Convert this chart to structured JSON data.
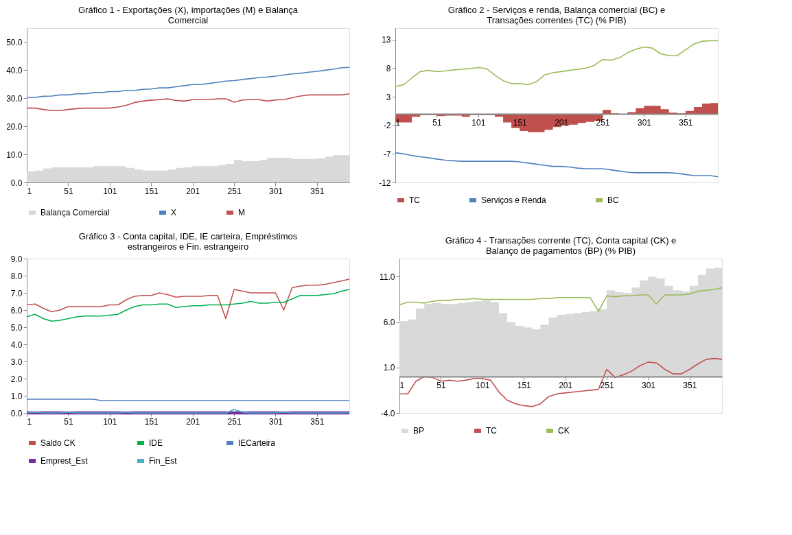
{
  "chart_data": [
    {
      "type": "line",
      "title": "Gráfico 1 - Exportações (X), importações (M) e Balança Comercial",
      "legend": "bottom",
      "grid": false,
      "x": [
        1,
        11,
        21,
        31,
        41,
        51,
        61,
        71,
        81,
        91,
        101,
        111,
        121,
        131,
        141,
        151,
        161,
        171,
        181,
        191,
        201,
        211,
        221,
        231,
        241,
        251,
        261,
        271,
        281,
        291,
        301,
        311,
        321,
        331,
        341,
        351,
        361,
        371,
        381,
        390
      ],
      "xlim": [
        1,
        390
      ],
      "xticks": [
        1,
        51,
        101,
        151,
        201,
        251,
        301,
        351
      ],
      "ylim": [
        0,
        55
      ],
      "yticks": [
        {
          "value": 0,
          "label": "0.0"
        },
        {
          "value": 10,
          "label": "10.0"
        },
        {
          "value": 20,
          "label": "20.0"
        },
        {
          "value": 30,
          "label": "30.0"
        },
        {
          "value": 40,
          "label": "40.0"
        },
        {
          "value": 50,
          "label": "50.0"
        }
      ],
      "series": [
        {
          "name": "Balança Comercial",
          "type": "area",
          "color": "#d9d9d9",
          "values": [
            4.0,
            4.2,
            5.0,
            5.4,
            5.4,
            5.4,
            5.4,
            5.4,
            5.8,
            5.8,
            5.8,
            5.8,
            5.2,
            4.6,
            4.2,
            4.2,
            4.2,
            4.6,
            5.2,
            5.4,
            5.8,
            5.8,
            5.8,
            6.2,
            6.6,
            8.0,
            7.6,
            7.6,
            8.0,
            8.8,
            8.8,
            8.8,
            8.4,
            8.4,
            8.4,
            8.6,
            9.2,
            9.7,
            9.7,
            9.7
          ]
        },
        {
          "name": "X",
          "color": "#4f81bd",
          "values": [
            30.3,
            30.3,
            30.7,
            30.8,
            31.2,
            31.2,
            31.6,
            31.6,
            32.0,
            32.0,
            32.4,
            32.4,
            32.8,
            32.8,
            33.2,
            33.3,
            33.7,
            33.7,
            34.1,
            34.5,
            34.9,
            34.9,
            35.3,
            35.7,
            36.1,
            36.3,
            36.7,
            37.0,
            37.4,
            37.6,
            37.9,
            38.3,
            38.7,
            38.9,
            39.3,
            39.6,
            40.0,
            40.4,
            40.9,
            41.0
          ]
        },
        {
          "name": "M",
          "color": "#c0504d",
          "values": [
            26.5,
            26.5,
            26.0,
            25.6,
            25.6,
            26.0,
            26.3,
            26.5,
            26.5,
            26.5,
            26.5,
            26.9,
            27.5,
            28.5,
            29.0,
            29.3,
            29.5,
            29.8,
            29.2,
            29.0,
            29.5,
            29.5,
            29.5,
            29.8,
            29.8,
            28.6,
            29.4,
            29.5,
            29.5,
            29.0,
            29.4,
            29.5,
            30.2,
            30.8,
            31.2,
            31.2,
            31.2,
            31.2,
            31.2,
            31.6
          ]
        }
      ]
    },
    {
      "type": "line",
      "title": "Gráfico 2 - Serviços e renda, Balança comercial (BC) e Transações correntes (TC) (% PIB)",
      "legend": "bottom",
      "grid": false,
      "x": [
        1,
        11,
        21,
        31,
        41,
        51,
        61,
        71,
        81,
        91,
        101,
        111,
        121,
        131,
        141,
        151,
        161,
        171,
        181,
        191,
        201,
        211,
        221,
        231,
        241,
        251,
        261,
        271,
        281,
        291,
        301,
        311,
        321,
        331,
        341,
        351,
        361,
        371,
        381,
        390
      ],
      "xlim": [
        1,
        390
      ],
      "xticks": [
        1,
        51,
        101,
        151,
        201,
        251,
        301,
        351
      ],
      "ylim": [
        -12,
        15
      ],
      "yticks": [
        -12,
        -7,
        -2,
        3,
        8,
        13
      ],
      "series": [
        {
          "name": "TC",
          "type": "area",
          "color": "#c0504d",
          "values": [
            -1.5,
            -1.5,
            -0.5,
            -0.2,
            -0.2,
            -0.4,
            -0.3,
            -0.3,
            -0.5,
            -0.2,
            -0.2,
            -0.2,
            -0.5,
            -1.5,
            -2.5,
            -3.0,
            -3.2,
            -3.2,
            -2.8,
            -2.3,
            -2.0,
            -1.9,
            -1.6,
            -1.4,
            -1.2,
            0.7,
            0.1,
            -0.1,
            0.3,
            1.0,
            1.4,
            1.4,
            0.8,
            0.2,
            0.1,
            0.5,
            1.2,
            1.8,
            1.9,
            1.9
          ]
        },
        {
          "name": "Serviços e Renda",
          "color": "#4f81bd",
          "values": [
            -6.8,
            -7.0,
            -7.3,
            -7.5,
            -7.7,
            -7.9,
            -8.1,
            -8.2,
            -8.3,
            -8.3,
            -8.3,
            -8.3,
            -8.3,
            -8.3,
            -8.3,
            -8.4,
            -8.6,
            -8.8,
            -9.0,
            -9.2,
            -9.2,
            -9.3,
            -9.5,
            -9.6,
            -9.6,
            -9.6,
            -9.8,
            -10.0,
            -10.2,
            -10.3,
            -10.3,
            -10.3,
            -10.3,
            -10.3,
            -10.4,
            -10.6,
            -10.8,
            -10.8,
            -10.8,
            -11.0
          ]
        },
        {
          "name": "BC",
          "color": "#9bbb59",
          "values": [
            4.8,
            5.1,
            6.3,
            7.4,
            7.6,
            7.4,
            7.5,
            7.7,
            7.8,
            7.9,
            8.1,
            7.9,
            6.8,
            5.8,
            5.3,
            5.3,
            5.1,
            5.6,
            6.8,
            7.2,
            7.4,
            7.6,
            7.8,
            8.0,
            8.5,
            9.5,
            9.4,
            9.8,
            10.7,
            11.3,
            11.7,
            11.5,
            10.5,
            10.2,
            10.2,
            11.2,
            12.2,
            12.7,
            12.8,
            12.8
          ]
        }
      ]
    },
    {
      "type": "line",
      "title": "Gráfico 3 - Conta capital, IDE, IE carteira, Empréstimos estrangeiros e Fin. estrangeiro",
      "legend": "bottom",
      "grid": false,
      "x": [
        1,
        11,
        21,
        31,
        41,
        51,
        61,
        71,
        81,
        91,
        101,
        111,
        121,
        131,
        141,
        151,
        161,
        171,
        181,
        191,
        201,
        211,
        221,
        231,
        241,
        251,
        261,
        271,
        281,
        291,
        301,
        311,
        321,
        331,
        341,
        351,
        361,
        371,
        381,
        390
      ],
      "xlim": [
        1,
        390
      ],
      "xticks": [
        1,
        51,
        101,
        151,
        201,
        251,
        301,
        351
      ],
      "ylim": [
        0,
        9
      ],
      "yticks": [
        {
          "value": 0,
          "label": "0.0"
        },
        {
          "value": 1,
          "label": "1.0"
        },
        {
          "value": 2,
          "label": "2.0"
        },
        {
          "value": 3,
          "label": "3.0"
        },
        {
          "value": 4,
          "label": "4.0"
        },
        {
          "value": 5,
          "label": "5.0"
        },
        {
          "value": 6,
          "label": "6.0"
        },
        {
          "value": 7,
          "label": "7.0"
        },
        {
          "value": 8,
          "label": "8.0"
        },
        {
          "value": 9,
          "label": "9.0"
        }
      ],
      "series": [
        {
          "name": "Saldo CK",
          "color": "#c0504d",
          "values": [
            6.3,
            6.35,
            6.1,
            5.9,
            6.0,
            6.2,
            6.2,
            6.2,
            6.2,
            6.2,
            6.3,
            6.3,
            6.6,
            6.8,
            6.85,
            6.85,
            7.0,
            6.9,
            6.75,
            6.8,
            6.8,
            6.8,
            6.85,
            6.85,
            5.5,
            7.2,
            7.1,
            7.0,
            7.0,
            7.0,
            7.0,
            6.0,
            7.3,
            7.4,
            7.45,
            7.45,
            7.5,
            7.6,
            7.7,
            7.8
          ]
        },
        {
          "name": "IDE",
          "color": "#00b050",
          "values": [
            5.6,
            5.75,
            5.5,
            5.35,
            5.4,
            5.5,
            5.6,
            5.65,
            5.65,
            5.65,
            5.7,
            5.75,
            6.0,
            6.2,
            6.3,
            6.3,
            6.35,
            6.35,
            6.15,
            6.2,
            6.25,
            6.25,
            6.3,
            6.3,
            6.3,
            6.35,
            6.4,
            6.5,
            6.4,
            6.4,
            6.45,
            6.45,
            6.65,
            6.85,
            6.85,
            6.85,
            6.9,
            6.95,
            7.1,
            7.2
          ]
        },
        {
          "name": "IECarteira",
          "color": "#4f81bd",
          "values": [
            0.8,
            0.8,
            0.8,
            0.8,
            0.8,
            0.8,
            0.8,
            0.8,
            0.8,
            0.72,
            0.72,
            0.72,
            0.72,
            0.72,
            0.72,
            0.72,
            0.72,
            0.72,
            0.72,
            0.72,
            0.72,
            0.72,
            0.72,
            0.72,
            0.72,
            0.72,
            0.72,
            0.72,
            0.72,
            0.72,
            0.72,
            0.72,
            0.72,
            0.72,
            0.72,
            0.72,
            0.72,
            0.72,
            0.72,
            0.72
          ]
        },
        {
          "name": "Emprest_Est",
          "color": "#7030a0",
          "values": [
            0,
            0,
            0,
            0,
            0,
            0,
            0,
            0,
            0,
            0,
            0,
            0,
            0,
            0,
            0,
            0,
            0,
            0,
            0,
            0,
            0,
            0,
            0,
            0,
            0,
            0,
            0,
            0,
            0,
            0,
            0,
            0,
            0,
            0,
            0,
            0,
            0,
            0,
            0,
            0
          ]
        },
        {
          "name": "Fin_Est",
          "color": "#4bacc6",
          "values": [
            0,
            0.05,
            0,
            0,
            0,
            0.05,
            0,
            0,
            0,
            0,
            0,
            0,
            0.05,
            0,
            0,
            0,
            0,
            0,
            0,
            0,
            0,
            0,
            0,
            0,
            0,
            0.2,
            0.05,
            0,
            0,
            0,
            0,
            0.05,
            0,
            0,
            0,
            0,
            0,
            0,
            0,
            0
          ]
        }
      ]
    },
    {
      "type": "line",
      "title": "Gráfico 4 - Transações corrente (TC), Conta capital (CK) e Balanço de pagamentos (BP) (% PIB)",
      "legend": "bottom",
      "grid": false,
      "x": [
        1,
        11,
        21,
        31,
        41,
        51,
        61,
        71,
        81,
        91,
        101,
        111,
        121,
        131,
        141,
        151,
        161,
        171,
        181,
        191,
        201,
        211,
        221,
        231,
        241,
        251,
        261,
        271,
        281,
        291,
        301,
        311,
        321,
        331,
        341,
        351,
        361,
        371,
        381,
        390
      ],
      "xlim": [
        1,
        390
      ],
      "xticks": [
        1,
        51,
        101,
        151,
        201,
        251,
        301,
        351
      ],
      "ylim": [
        -4,
        13
      ],
      "yticks": [
        {
          "value": -4,
          "label": "-4.0"
        },
        {
          "value": 1,
          "label": "1.0"
        },
        {
          "value": 6,
          "label": "6.0"
        },
        {
          "value": 11,
          "label": "11.0"
        }
      ],
      "series": [
        {
          "name": "BP",
          "type": "area",
          "color": "#d9d9d9",
          "values": [
            6.1,
            6.3,
            7.5,
            8.0,
            8.1,
            8.0,
            8.0,
            8.1,
            8.2,
            8.3,
            8.4,
            8.2,
            7.0,
            6.0,
            5.6,
            5.4,
            5.2,
            5.7,
            6.5,
            6.8,
            6.9,
            7.0,
            7.1,
            7.2,
            7.4,
            9.5,
            9.3,
            9.2,
            9.8,
            10.6,
            11.0,
            10.8,
            10.0,
            9.5,
            9.4,
            10.0,
            11.2,
            11.9,
            12.0,
            12.0
          ]
        },
        {
          "name": "TC",
          "color": "#c0504d",
          "values": [
            -1.9,
            -1.9,
            -0.5,
            0.0,
            -0.1,
            -0.5,
            -0.4,
            -0.5,
            -0.4,
            -0.2,
            -0.2,
            -0.4,
            -1.7,
            -2.6,
            -3.0,
            -3.2,
            -3.3,
            -3.0,
            -2.2,
            -1.9,
            -1.8,
            -1.7,
            -1.6,
            -1.5,
            -1.4,
            0.8,
            -0.1,
            0.2,
            0.6,
            1.2,
            1.6,
            1.5,
            0.8,
            0.3,
            0.3,
            0.8,
            1.4,
            1.9,
            2.0,
            1.9
          ]
        },
        {
          "name": "CK",
          "color": "#9bbb59",
          "values": [
            7.9,
            8.2,
            8.2,
            8.1,
            8.3,
            8.4,
            8.4,
            8.5,
            8.5,
            8.6,
            8.5,
            8.5,
            8.5,
            8.5,
            8.5,
            8.5,
            8.5,
            8.6,
            8.6,
            8.7,
            8.7,
            8.7,
            8.7,
            8.7,
            7.2,
            8.9,
            8.8,
            8.9,
            8.9,
            9.0,
            9.0,
            8.0,
            9.0,
            9.0,
            9.0,
            9.1,
            9.4,
            9.5,
            9.6,
            9.8
          ]
        }
      ]
    }
  ]
}
